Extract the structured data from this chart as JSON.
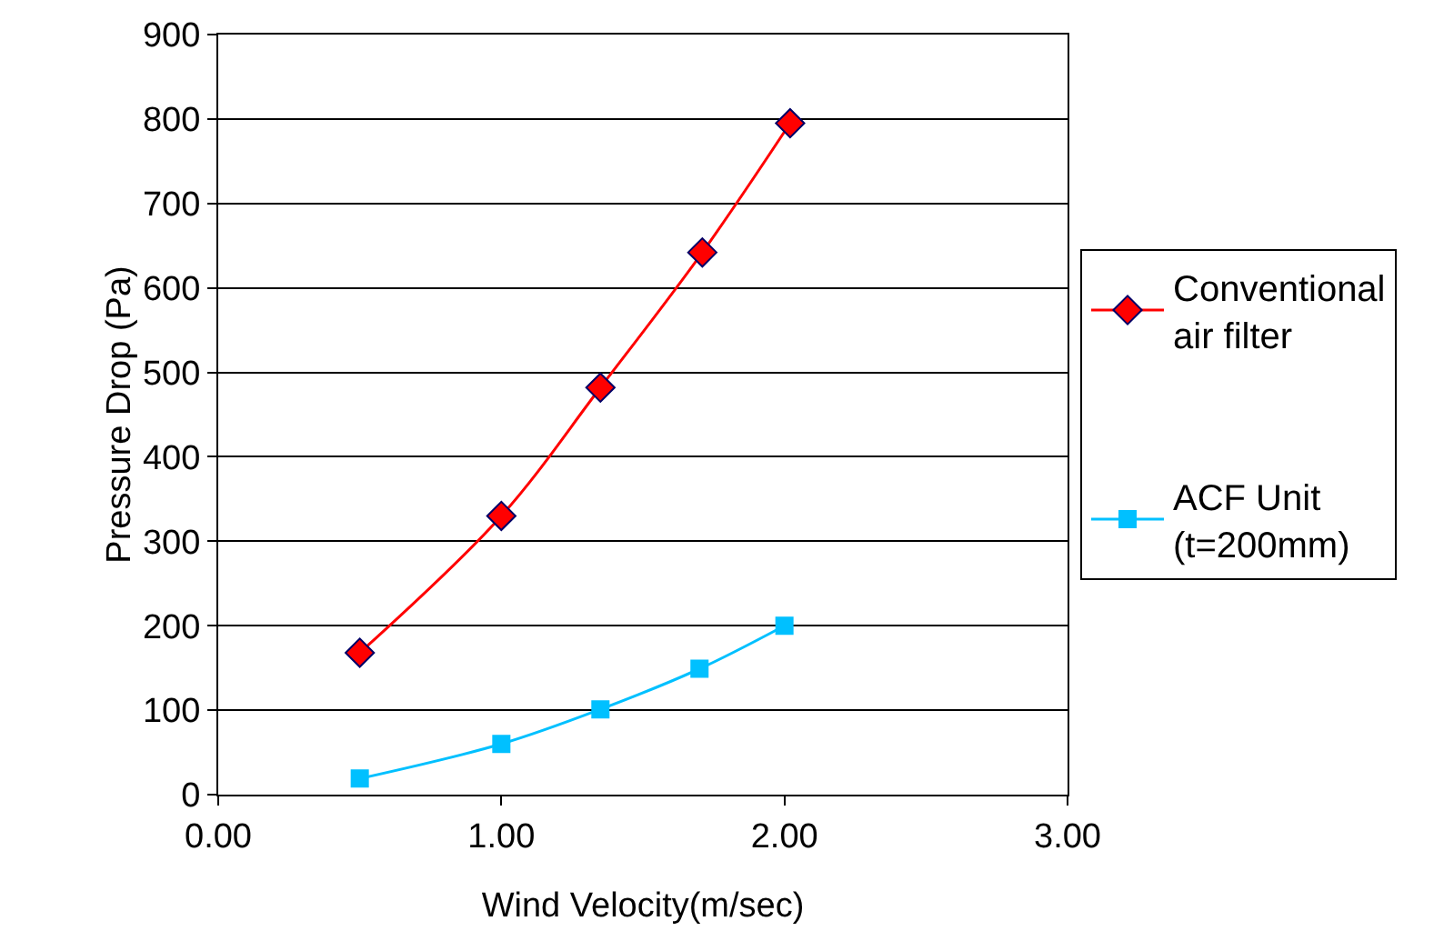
{
  "chart_data": {
    "type": "line",
    "xlabel": "Wind Velocity(m/sec)",
    "ylabel": "Pressure Drop (Pa)",
    "xlim": [
      0,
      3
    ],
    "xticks": [
      {
        "value": 0,
        "label": "0.00"
      },
      {
        "value": 1,
        "label": "1.00"
      },
      {
        "value": 2,
        "label": "2.00"
      },
      {
        "value": 3,
        "label": "3.00"
      }
    ],
    "ylim": [
      0,
      900
    ],
    "yticks": [
      0,
      100,
      200,
      300,
      400,
      500,
      600,
      700,
      800,
      900
    ],
    "grid": "y",
    "legend": "right",
    "line_style": "solid",
    "series": [
      {
        "name": "Conventional air filter",
        "color": "#ff0000",
        "marker": "diamond",
        "x": [
          0.5,
          1.0,
          1.35,
          1.71,
          2.02
        ],
        "values": [
          168,
          330,
          482,
          642,
          795
        ]
      },
      {
        "name": "ACF Unit (t=200mm)",
        "color": "#00c0ff",
        "marker": "square",
        "x": [
          0.5,
          1.0,
          1.35,
          1.7,
          2.0
        ],
        "values": [
          19,
          60,
          101,
          149,
          200
        ]
      }
    ]
  }
}
